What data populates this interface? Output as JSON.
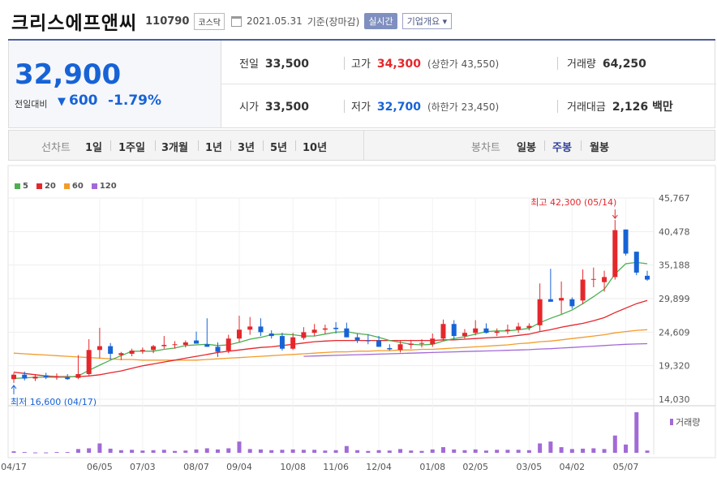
{
  "header": {
    "name": "크리스에프앤씨",
    "code": "110790",
    "market": "코스닥",
    "date": "2021.05.31",
    "basis": "기준(장마감)",
    "realtime": "실시간",
    "company": "기업개요 ▾"
  },
  "quote": {
    "price": "32,900",
    "change_label": "전일대비",
    "change_arrow": "▼",
    "change": "600",
    "change_pct": "-1.79%",
    "prev_label": "전일",
    "prev": "33,500",
    "high_label": "고가",
    "high": "34,300",
    "upper_limit": "(상한가 43,550)",
    "volume_label": "거래량",
    "volume": "64,250",
    "open_label": "시가",
    "open": "33,500",
    "low_label": "저가",
    "low": "32,700",
    "lower_limit": "(하한가 23,450)",
    "amount_label": "거래대금",
    "amount": "2,126 백만"
  },
  "tabs": {
    "line_label": "선차트",
    "line_periods": [
      "1일",
      "1주일",
      "3개월",
      "1년",
      "3년",
      "5년",
      "10년"
    ],
    "candle_label": "봉차트",
    "candle_periods": [
      "일봉",
      "주봉",
      "월봉"
    ],
    "selected": "주봉"
  },
  "colors": {
    "up": "#e5272c",
    "down": "#1763d6",
    "ma5": "#4caf50",
    "ma20": "#e5272c",
    "ma60": "#f39c2b",
    "ma120": "#a26ad6",
    "volume": "#a26ad6"
  },
  "chart_data": {
    "type": "candlestick",
    "title": "",
    "interval": "주봉",
    "legend": [
      "5",
      "20",
      "60",
      "120"
    ],
    "y_ticks": [
      "45,767",
      "40,478",
      "35,188",
      "29,899",
      "24,609",
      "19,320",
      "14,030"
    ],
    "ylim": [
      14030,
      45767
    ],
    "x_ticks": [
      "04/17",
      "06/05",
      "07/03",
      "08/07",
      "09/04",
      "10/08",
      "11/06",
      "12/04",
      "01/08",
      "02/05",
      "03/05",
      "04/02",
      "05/07"
    ],
    "annotations": {
      "high": "최고 42,300 (05/14)",
      "low": "최저 16,600 (04/17)"
    },
    "volume_label": "거래량",
    "candles": [
      {
        "o": 17200,
        "h": 18200,
        "l": 16600,
        "c": 17900,
        "v": 4
      },
      {
        "o": 17900,
        "h": 18400,
        "l": 17000,
        "c": 17300,
        "v": 2
      },
      {
        "o": 17300,
        "h": 18000,
        "l": 16900,
        "c": 17600,
        "v": 1
      },
      {
        "o": 17800,
        "h": 18200,
        "l": 17200,
        "c": 17500,
        "v": 1
      },
      {
        "o": 17500,
        "h": 18100,
        "l": 17100,
        "c": 17600,
        "v": 2
      },
      {
        "o": 17500,
        "h": 18000,
        "l": 17100,
        "c": 17200,
        "v": 2
      },
      {
        "o": 17400,
        "h": 21000,
        "l": 17200,
        "c": 18000,
        "v": 10
      },
      {
        "o": 18000,
        "h": 23500,
        "l": 17800,
        "c": 21800,
        "v": 12
      },
      {
        "o": 21800,
        "h": 25300,
        "l": 20500,
        "c": 22400,
        "v": 25
      },
      {
        "o": 22400,
        "h": 22900,
        "l": 20300,
        "c": 21200,
        "v": 11
      },
      {
        "o": 21000,
        "h": 21500,
        "l": 20200,
        "c": 21300,
        "v": 7
      },
      {
        "o": 21200,
        "h": 22000,
        "l": 20800,
        "c": 21700,
        "v": 8
      },
      {
        "o": 21600,
        "h": 22200,
        "l": 21200,
        "c": 21800,
        "v": 6
      },
      {
        "o": 21800,
        "h": 22600,
        "l": 21300,
        "c": 22400,
        "v": 7
      },
      {
        "o": 22400,
        "h": 24000,
        "l": 22000,
        "c": 22600,
        "v": 8
      },
      {
        "o": 22600,
        "h": 23200,
        "l": 22000,
        "c": 22700,
        "v": 5
      },
      {
        "o": 22600,
        "h": 23300,
        "l": 22200,
        "c": 23000,
        "v": 6
      },
      {
        "o": 23300,
        "h": 24700,
        "l": 22800,
        "c": 22800,
        "v": 9
      },
      {
        "o": 22700,
        "h": 26800,
        "l": 22300,
        "c": 22300,
        "v": 12
      },
      {
        "o": 22300,
        "h": 23000,
        "l": 20700,
        "c": 21500,
        "v": 9
      },
      {
        "o": 21700,
        "h": 24200,
        "l": 21300,
        "c": 23600,
        "v": 12
      },
      {
        "o": 23600,
        "h": 27200,
        "l": 23000,
        "c": 25000,
        "v": 30
      },
      {
        "o": 25000,
        "h": 27000,
        "l": 24200,
        "c": 25500,
        "v": 10
      },
      {
        "o": 25500,
        "h": 26800,
        "l": 24000,
        "c": 24600,
        "v": 9
      },
      {
        "o": 24400,
        "h": 24900,
        "l": 23600,
        "c": 24000,
        "v": 7
      },
      {
        "o": 24000,
        "h": 24500,
        "l": 21700,
        "c": 22000,
        "v": 8
      },
      {
        "o": 22000,
        "h": 24500,
        "l": 21800,
        "c": 23800,
        "v": 9
      },
      {
        "o": 23700,
        "h": 25400,
        "l": 23400,
        "c": 24600,
        "v": 8
      },
      {
        "o": 24500,
        "h": 25900,
        "l": 24000,
        "c": 25000,
        "v": 8
      },
      {
        "o": 25000,
        "h": 25800,
        "l": 24300,
        "c": 25200,
        "v": 6
      },
      {
        "o": 25300,
        "h": 26200,
        "l": 24400,
        "c": 25100,
        "v": 7
      },
      {
        "o": 25200,
        "h": 26100,
        "l": 23800,
        "c": 23800,
        "v": 18
      },
      {
        "o": 23800,
        "h": 24400,
        "l": 22900,
        "c": 23300,
        "v": 7
      },
      {
        "o": 23300,
        "h": 24300,
        "l": 22700,
        "c": 23200,
        "v": 5
      },
      {
        "o": 23300,
        "h": 24000,
        "l": 22300,
        "c": 22300,
        "v": 7
      },
      {
        "o": 22100,
        "h": 22700,
        "l": 21700,
        "c": 21900,
        "v": 6
      },
      {
        "o": 21800,
        "h": 23300,
        "l": 21400,
        "c": 22700,
        "v": 10
      },
      {
        "o": 22600,
        "h": 23400,
        "l": 22000,
        "c": 22800,
        "v": 6
      },
      {
        "o": 22800,
        "h": 23500,
        "l": 22200,
        "c": 22900,
        "v": 5
      },
      {
        "o": 22700,
        "h": 24400,
        "l": 22300,
        "c": 23600,
        "v": 9
      },
      {
        "o": 23600,
        "h": 26600,
        "l": 23300,
        "c": 25900,
        "v": 15
      },
      {
        "o": 25900,
        "h": 26500,
        "l": 23500,
        "c": 24000,
        "v": 9
      },
      {
        "o": 24000,
        "h": 25100,
        "l": 23600,
        "c": 24500,
        "v": 7
      },
      {
        "o": 24500,
        "h": 26500,
        "l": 24100,
        "c": 25200,
        "v": 9
      },
      {
        "o": 25200,
        "h": 26000,
        "l": 24400,
        "c": 24500,
        "v": 6
      },
      {
        "o": 24500,
        "h": 25200,
        "l": 24000,
        "c": 24700,
        "v": 8
      },
      {
        "o": 24800,
        "h": 25800,
        "l": 24300,
        "c": 25000,
        "v": 8
      },
      {
        "o": 25000,
        "h": 26100,
        "l": 24500,
        "c": 25500,
        "v": 8
      },
      {
        "o": 25300,
        "h": 26000,
        "l": 24900,
        "c": 25600,
        "v": 7
      },
      {
        "o": 25700,
        "h": 32300,
        "l": 24800,
        "c": 29800,
        "v": 25
      },
      {
        "o": 29800,
        "h": 34600,
        "l": 29500,
        "c": 29400,
        "v": 30
      },
      {
        "o": 29600,
        "h": 32600,
        "l": 27500,
        "c": 30000,
        "v": 15
      },
      {
        "o": 29800,
        "h": 30100,
        "l": 28300,
        "c": 28700,
        "v": 10
      },
      {
        "o": 29600,
        "h": 34500,
        "l": 29000,
        "c": 32900,
        "v": 11
      },
      {
        "o": 32900,
        "h": 34800,
        "l": 31700,
        "c": 33000,
        "v": 12
      },
      {
        "o": 32500,
        "h": 34300,
        "l": 31000,
        "c": 33300,
        "v": 10
      },
      {
        "o": 33300,
        "h": 42300,
        "l": 32900,
        "c": 40700,
        "v": 46
      },
      {
        "o": 40800,
        "h": 40800,
        "l": 36700,
        "c": 37000,
        "v": 22
      },
      {
        "o": 37300,
        "h": 37300,
        "l": 33600,
        "c": 34000,
        "v": 108
      },
      {
        "o": 33500,
        "h": 34300,
        "l": 32700,
        "c": 32900,
        "v": 6
      }
    ],
    "ma5": [
      17300,
      17400,
      17500,
      17500,
      17500,
      17500,
      17700,
      18600,
      19400,
      20200,
      20900,
      21600,
      21600,
      21600,
      21900,
      22100,
      22500,
      22600,
      22700,
      22500,
      22600,
      23000,
      23500,
      23800,
      24200,
      24300,
      24200,
      24000,
      24000,
      24300,
      24600,
      24700,
      24400,
      24200,
      23800,
      23300,
      23000,
      22700,
      22600,
      22700,
      23200,
      23600,
      23900,
      24300,
      24700,
      24800,
      24800,
      25000,
      25200,
      26100,
      26800,
      27400,
      28100,
      29100,
      30200,
      31400,
      33800,
      35400,
      35600,
      35400
    ],
    "ma20": [
      18300,
      18100,
      17900,
      17700,
      17600,
      17600,
      17600,
      17700,
      17900,
      18200,
      18500,
      18900,
      19300,
      19600,
      19900,
      20200,
      20500,
      20800,
      21100,
      21400,
      21600,
      21800,
      22000,
      22200,
      22300,
      22500,
      22700,
      22900,
      23100,
      23200,
      23300,
      23300,
      23300,
      23300,
      23300,
      23300,
      23300,
      23300,
      23300,
      23300,
      23400,
      23400,
      23500,
      23600,
      23700,
      23800,
      23900,
      24100,
      24300,
      24700,
      25000,
      25400,
      25700,
      26000,
      26400,
      26900,
      27700,
      28400,
      29100,
      29600
    ],
    "ma60": [
      21300,
      21200,
      21100,
      21000,
      20900,
      20800,
      20700,
      20600,
      20500,
      20400,
      20300,
      20300,
      20200,
      20200,
      20200,
      20200,
      20200,
      20200,
      20300,
      20400,
      20500,
      20600,
      20700,
      20800,
      20900,
      21000,
      21100,
      21200,
      21300,
      21400,
      21500,
      21500,
      21600,
      21600,
      21700,
      21700,
      21800,
      21800,
      21900,
      21900,
      22000,
      22100,
      22200,
      22300,
      22400,
      22500,
      22600,
      22800,
      22900,
      23100,
      23200,
      23400,
      23600,
      23800,
      24000,
      24200,
      24500,
      24700,
      24900,
      25000
    ],
    "ma120": [
      null,
      null,
      null,
      null,
      null,
      null,
      null,
      null,
      null,
      null,
      null,
      null,
      null,
      null,
      null,
      null,
      null,
      null,
      null,
      null,
      null,
      null,
      null,
      null,
      null,
      null,
      null,
      20800,
      20850,
      20900,
      20950,
      21000,
      21050,
      21100,
      21150,
      21200,
      21250,
      21300,
      21350,
      21400,
      21450,
      21500,
      21550,
      21600,
      21650,
      21700,
      21750,
      21800,
      21850,
      21950,
      22000,
      22100,
      22200,
      22300,
      22400,
      22500,
      22600,
      22700,
      22750,
      22800
    ]
  }
}
